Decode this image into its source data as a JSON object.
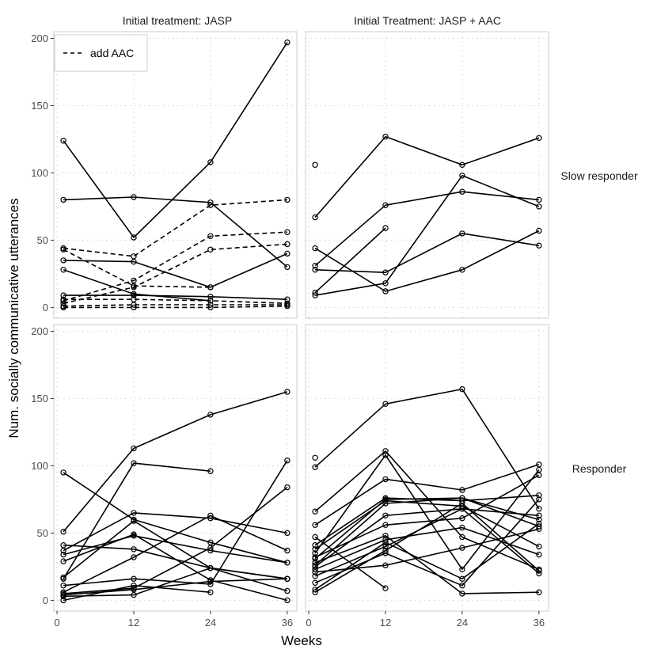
{
  "chart_data": {
    "type": "line",
    "facet_columns": [
      "Initial treatment: JASP",
      "Initial Treatment: JASP + AAC"
    ],
    "facet_rows": [
      "Slow responder",
      "Responder"
    ],
    "xlabel": "Weeks",
    "ylabel": "Num. socially communicative utterances",
    "x_ticks": [
      0,
      12,
      24,
      36
    ],
    "y_ticks": [
      0,
      50,
      100,
      150,
      200
    ],
    "xlim": [
      -0.5,
      37.5
    ],
    "ylim": [
      -8,
      205
    ],
    "legend": {
      "position": "top-left",
      "entries": [
        {
          "label": "add AAC",
          "linetype": "dashed"
        }
      ]
    },
    "panels": [
      {
        "column": 0,
        "row": 0,
        "series": [
          {
            "linetype": "solid",
            "points": [
              [
                1,
                124
              ],
              [
                12,
                52
              ],
              [
                24,
                108
              ],
              [
                36,
                197
              ]
            ]
          },
          {
            "linetype": "solid",
            "points": [
              [
                1,
                80
              ],
              [
                12,
                82
              ],
              [
                24,
                78
              ],
              [
                36,
                30
              ]
            ]
          },
          {
            "linetype": "solid",
            "points": [
              [
                1,
                35
              ],
              [
                12,
                34
              ],
              [
                24,
                15
              ],
              [
                36,
                40
              ]
            ]
          },
          {
            "linetype": "solid",
            "points": [
              [
                1,
                28
              ],
              [
                12,
                10
              ],
              [
                24,
                5
              ]
            ]
          },
          {
            "linetype": "solid",
            "points": [
              [
                1,
                9
              ],
              [
                12,
                9
              ],
              [
                24,
                8
              ],
              [
                36,
                6
              ]
            ]
          },
          {
            "linetype": "dashed",
            "points": [
              [
                1,
                44
              ],
              [
                12,
                38
              ],
              [
                24,
                76
              ],
              [
                36,
                80
              ]
            ]
          },
          {
            "linetype": "dashed",
            "points": [
              [
                1,
                43
              ],
              [
                12,
                16
              ],
              [
                24,
                15
              ]
            ]
          },
          {
            "linetype": "dashed",
            "points": [
              [
                1,
                5
              ],
              [
                12,
                20
              ],
              [
                24,
                53
              ],
              [
                36,
                56
              ]
            ]
          },
          {
            "linetype": "dashed",
            "points": [
              [
                1,
                3
              ],
              [
                12,
                15
              ],
              [
                24,
                43
              ],
              [
                36,
                47
              ]
            ]
          },
          {
            "linetype": "dashed",
            "points": [
              [
                1,
                6
              ],
              [
                12,
                6
              ],
              [
                24,
                5
              ],
              [
                36,
                3
              ]
            ]
          },
          {
            "linetype": "dashed",
            "points": [
              [
                1,
                1
              ],
              [
                12,
                2
              ],
              [
                24,
                2
              ],
              [
                36,
                2
              ]
            ]
          },
          {
            "linetype": "dashed",
            "points": [
              [
                1,
                0
              ],
              [
                12,
                0
              ],
              [
                24,
                0
              ],
              [
                36,
                1
              ]
            ]
          }
        ]
      },
      {
        "column": 1,
        "row": 0,
        "series": [
          {
            "linetype": "solid",
            "points": [
              [
                1,
                106
              ]
            ]
          },
          {
            "linetype": "solid",
            "points": [
              [
                1,
                67
              ],
              [
                12,
                127
              ],
              [
                24,
                106
              ],
              [
                36,
                126
              ]
            ]
          },
          {
            "linetype": "solid",
            "points": [
              [
                1,
                31
              ],
              [
                12,
                76
              ],
              [
                24,
                86
              ],
              [
                36,
                80
              ]
            ]
          },
          {
            "linetype": "solid",
            "points": [
              [
                1,
                44
              ],
              [
                12,
                12
              ],
              [
                24,
                28
              ],
              [
                36,
                57
              ]
            ]
          },
          {
            "linetype": "solid",
            "points": [
              [
                1,
                28
              ],
              [
                12,
                26
              ],
              [
                24,
                55
              ],
              [
                36,
                46
              ]
            ]
          },
          {
            "linetype": "solid",
            "points": [
              [
                1,
                11
              ],
              [
                12,
                59
              ]
            ]
          },
          {
            "linetype": "solid",
            "points": [
              [
                1,
                9
              ],
              [
                12,
                18
              ],
              [
                24,
                98
              ],
              [
                36,
                75
              ]
            ]
          }
        ]
      },
      {
        "column": 0,
        "row": 1,
        "series": [
          {
            "linetype": "solid",
            "points": [
              [
                1,
                51
              ],
              [
                12,
                113
              ],
              [
                24,
                138
              ],
              [
                36,
                155
              ]
            ]
          },
          {
            "linetype": "solid",
            "points": [
              [
                1,
                16
              ],
              [
                12,
                102
              ],
              [
                24,
                96
              ]
            ]
          },
          {
            "linetype": "solid",
            "points": [
              [
                1,
                95
              ],
              [
                12,
                60
              ],
              [
                24,
                43
              ],
              [
                36,
                28
              ]
            ]
          },
          {
            "linetype": "solid",
            "points": [
              [
                1,
                41
              ],
              [
                12,
                38
              ],
              [
                24,
                24
              ],
              [
                36,
                16
              ]
            ]
          },
          {
            "linetype": "solid",
            "points": [
              [
                1,
                37
              ],
              [
                12,
                65
              ],
              [
                24,
                61
              ],
              [
                36,
                50
              ]
            ]
          },
          {
            "linetype": "solid",
            "points": [
              [
                1,
                34
              ],
              [
                12,
                48
              ],
              [
                24,
                37
              ],
              [
                36,
                28
              ]
            ]
          },
          {
            "linetype": "solid",
            "points": [
              [
                1,
                29
              ],
              [
                12,
                49
              ],
              [
                24,
                15
              ],
              [
                36,
                0
              ]
            ]
          },
          {
            "linetype": "solid",
            "points": [
              [
                1,
                17
              ],
              [
                12,
                59
              ],
              [
                24,
                24
              ],
              [
                36,
                7
              ]
            ]
          },
          {
            "linetype": "solid",
            "points": [
              [
                1,
                11
              ],
              [
                12,
                16
              ],
              [
                24,
                12
              ],
              [
                36,
                104
              ]
            ]
          },
          {
            "linetype": "solid",
            "points": [
              [
                1,
                6
              ],
              [
                12,
                32
              ],
              [
                24,
                63
              ],
              [
                36,
                37
              ]
            ]
          },
          {
            "linetype": "solid",
            "points": [
              [
                1,
                5
              ],
              [
                12,
                9
              ],
              [
                24,
                39
              ],
              [
                36,
                84
              ]
            ]
          },
          {
            "linetype": "solid",
            "points": [
              [
                1,
                3
              ],
              [
                12,
                4
              ],
              [
                24,
                24
              ],
              [
                36,
                16
              ]
            ]
          },
          {
            "linetype": "solid",
            "points": [
              [
                1,
                0
              ],
              [
                12,
                11
              ],
              [
                24,
                6
              ]
            ]
          },
          {
            "linetype": "solid",
            "points": [
              [
                1,
                4
              ],
              [
                12,
                8
              ],
              [
                24,
                14
              ],
              [
                36,
                16
              ]
            ]
          }
        ]
      },
      {
        "column": 1,
        "row": 1,
        "series": [
          {
            "linetype": "solid",
            "points": [
              [
                1,
                106
              ]
            ]
          },
          {
            "linetype": "solid",
            "points": [
              [
                1,
                99
              ],
              [
                12,
                146
              ],
              [
                24,
                157
              ],
              [
                36,
                68
              ]
            ]
          },
          {
            "linetype": "solid",
            "points": [
              [
                1,
                66
              ],
              [
                12,
                111
              ],
              [
                24,
                47
              ],
              [
                36,
                23
              ]
            ]
          },
          {
            "linetype": "solid",
            "points": [
              [
                1,
                56
              ],
              [
                12,
                90
              ],
              [
                24,
                82
              ],
              [
                36,
                101
              ]
            ]
          },
          {
            "linetype": "solid",
            "points": [
              [
                1,
                47
              ],
              [
                12,
                9
              ]
            ]
          },
          {
            "linetype": "solid",
            "points": [
              [
                1,
                41
              ],
              [
                12,
                76
              ],
              [
                24,
                74
              ],
              [
                36,
                78
              ]
            ]
          },
          {
            "linetype": "solid",
            "points": [
              [
                1,
                38
              ],
              [
                12,
                74
              ],
              [
                24,
                70
              ],
              [
                36,
                40
              ]
            ]
          },
          {
            "linetype": "solid",
            "points": [
              [
                1,
                35
              ],
              [
                12,
                108
              ],
              [
                24,
                23
              ],
              [
                36,
                97
              ]
            ]
          },
          {
            "linetype": "solid",
            "points": [
              [
                1,
                32
              ],
              [
                12,
                56
              ],
              [
                24,
                61
              ],
              [
                36,
                93
              ]
            ]
          },
          {
            "linetype": "solid",
            "points": [
              [
                1,
                31
              ],
              [
                12,
                75
              ],
              [
                24,
                76
              ],
              [
                36,
                55
              ]
            ]
          },
          {
            "linetype": "solid",
            "points": [
              [
                1,
                28
              ],
              [
                12,
                48
              ],
              [
                24,
                5
              ],
              [
                36,
                6
              ]
            ]
          },
          {
            "linetype": "solid",
            "points": [
              [
                1,
                26
              ],
              [
                12,
                72
              ],
              [
                24,
                76
              ],
              [
                36,
                60
              ]
            ]
          },
          {
            "linetype": "solid",
            "points": [
              [
                1,
                25
              ],
              [
                12,
                63
              ],
              [
                24,
                68
              ],
              [
                36,
                20
              ]
            ]
          },
          {
            "linetype": "solid",
            "points": [
              [
                1,
                23
              ],
              [
                12,
                45
              ],
              [
                24,
                54
              ],
              [
                36,
                34
              ]
            ]
          },
          {
            "linetype": "solid",
            "points": [
              [
                1,
                21
              ],
              [
                12,
                26
              ],
              [
                24,
                39
              ],
              [
                36,
                53
              ]
            ]
          },
          {
            "linetype": "solid",
            "points": [
              [
                1,
                18
              ],
              [
                12,
                40
              ],
              [
                24,
                68
              ],
              [
                36,
                63
              ]
            ]
          },
          {
            "linetype": "solid",
            "points": [
              [
                1,
                13
              ],
              [
                12,
                35
              ],
              [
                24,
                11
              ],
              [
                36,
                75
              ]
            ]
          },
          {
            "linetype": "solid",
            "points": [
              [
                1,
                8
              ],
              [
                12,
                43
              ],
              [
                24,
                16
              ],
              [
                36,
                57
              ]
            ]
          },
          {
            "linetype": "solid",
            "points": [
              [
                1,
                6
              ],
              [
                12,
                37
              ],
              [
                24,
                72
              ],
              [
                36,
                22
              ]
            ]
          }
        ]
      }
    ]
  }
}
